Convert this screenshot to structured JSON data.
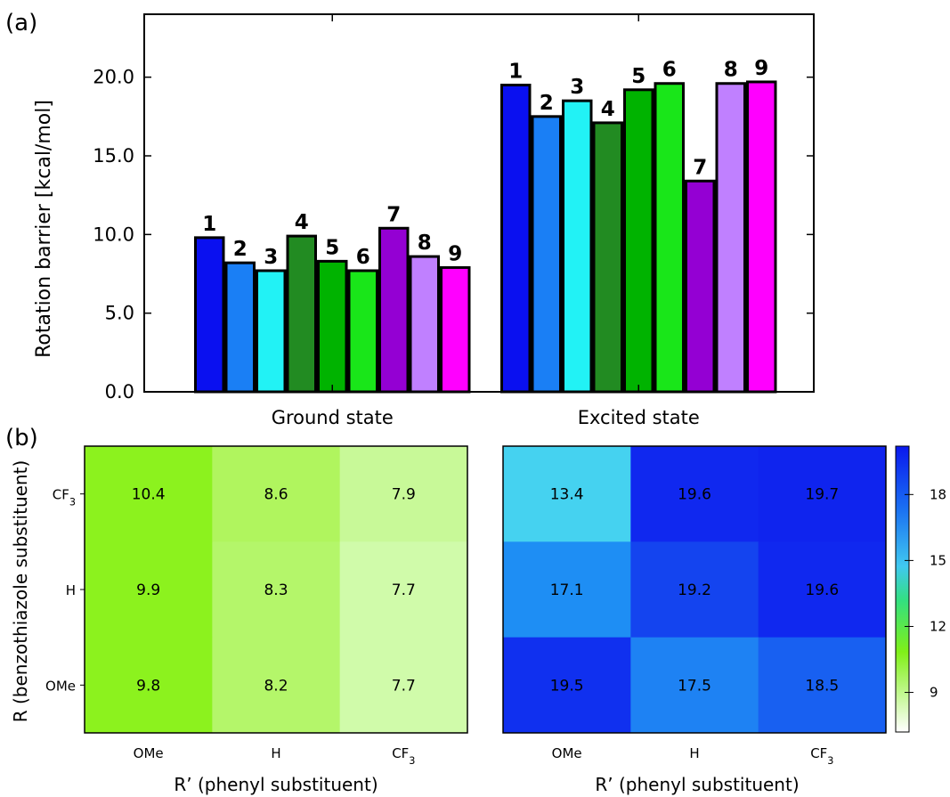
{
  "panel_a_label": "(a)",
  "panel_b_label": "(b)",
  "chart_data": [
    {
      "type": "bar",
      "categories": [
        "Ground state",
        "Excited state"
      ],
      "ylabel": "Rotation barrier [kcal/mol]",
      "ylim": [
        0,
        24
      ],
      "yticks": [
        "0.0",
        "5.0",
        "10.0",
        "15.0",
        "20.0"
      ],
      "ytick_values": [
        0,
        5,
        10,
        15,
        20
      ],
      "series": [
        {
          "name": "1",
          "color": "#0a10f0",
          "values": [
            9.8,
            19.5
          ]
        },
        {
          "name": "2",
          "color": "#1a7ff5",
          "values": [
            8.2,
            17.5
          ]
        },
        {
          "name": "3",
          "color": "#22f2f5",
          "values": [
            7.7,
            18.5
          ]
        },
        {
          "name": "4",
          "color": "#228b22",
          "values": [
            9.9,
            17.1
          ]
        },
        {
          "name": "5",
          "color": "#00b300",
          "values": [
            8.3,
            19.2
          ]
        },
        {
          "name": "6",
          "color": "#19e619",
          "values": [
            7.7,
            19.6
          ]
        },
        {
          "name": "7",
          "color": "#9400d3",
          "values": [
            10.4,
            13.4
          ]
        },
        {
          "name": "8",
          "color": "#c080ff",
          "values": [
            8.6,
            19.6
          ]
        },
        {
          "name": "9",
          "color": "#ff00ff",
          "values": [
            7.9,
            19.7
          ]
        }
      ]
    },
    {
      "type": "heatmap",
      "xlabel": "R’ (phenyl substituent)",
      "ylabel": "R (benzothiazole substituent)",
      "x_categories": [
        "OMe",
        "H",
        "CF3"
      ],
      "y_categories": [
        "CF3",
        "H",
        "OMe"
      ],
      "values": [
        [
          "10.4",
          "8.6",
          "7.9"
        ],
        [
          "9.9",
          "8.3",
          "7.7"
        ],
        [
          "9.8",
          "8.2",
          "7.7"
        ]
      ],
      "colors": [
        [
          "#8cf21e",
          "#b0f55e",
          "#c8f998"
        ],
        [
          "#8cf21e",
          "#b4f66a",
          "#d0fbaa"
        ],
        [
          "#8cf21e",
          "#b4f66a",
          "#d0fbaa"
        ]
      ]
    },
    {
      "type": "heatmap",
      "xlabel": "R’ (phenyl substituent)",
      "x_categories": [
        "OMe",
        "H",
        "CF3"
      ],
      "y_categories": [
        "CF3",
        "H",
        "OMe"
      ],
      "values": [
        [
          "13.4",
          "19.6",
          "19.7"
        ],
        [
          "17.1",
          "19.2",
          "19.6"
        ],
        [
          "19.5",
          "17.5",
          "18.5"
        ]
      ],
      "colors": [
        [
          "#45d2f0",
          "#1028ef",
          "#0f24ee"
        ],
        [
          "#1e8ef4",
          "#1444ef",
          "#1028ef"
        ],
        [
          "#1030ef",
          "#1e82f3",
          "#1860f1"
        ]
      ],
      "colorbar": {
        "ticks": [
          "9",
          "12",
          "15",
          "18"
        ],
        "tick_values": [
          9,
          12,
          15,
          18
        ],
        "range": [
          7.2,
          20.2
        ]
      }
    }
  ]
}
